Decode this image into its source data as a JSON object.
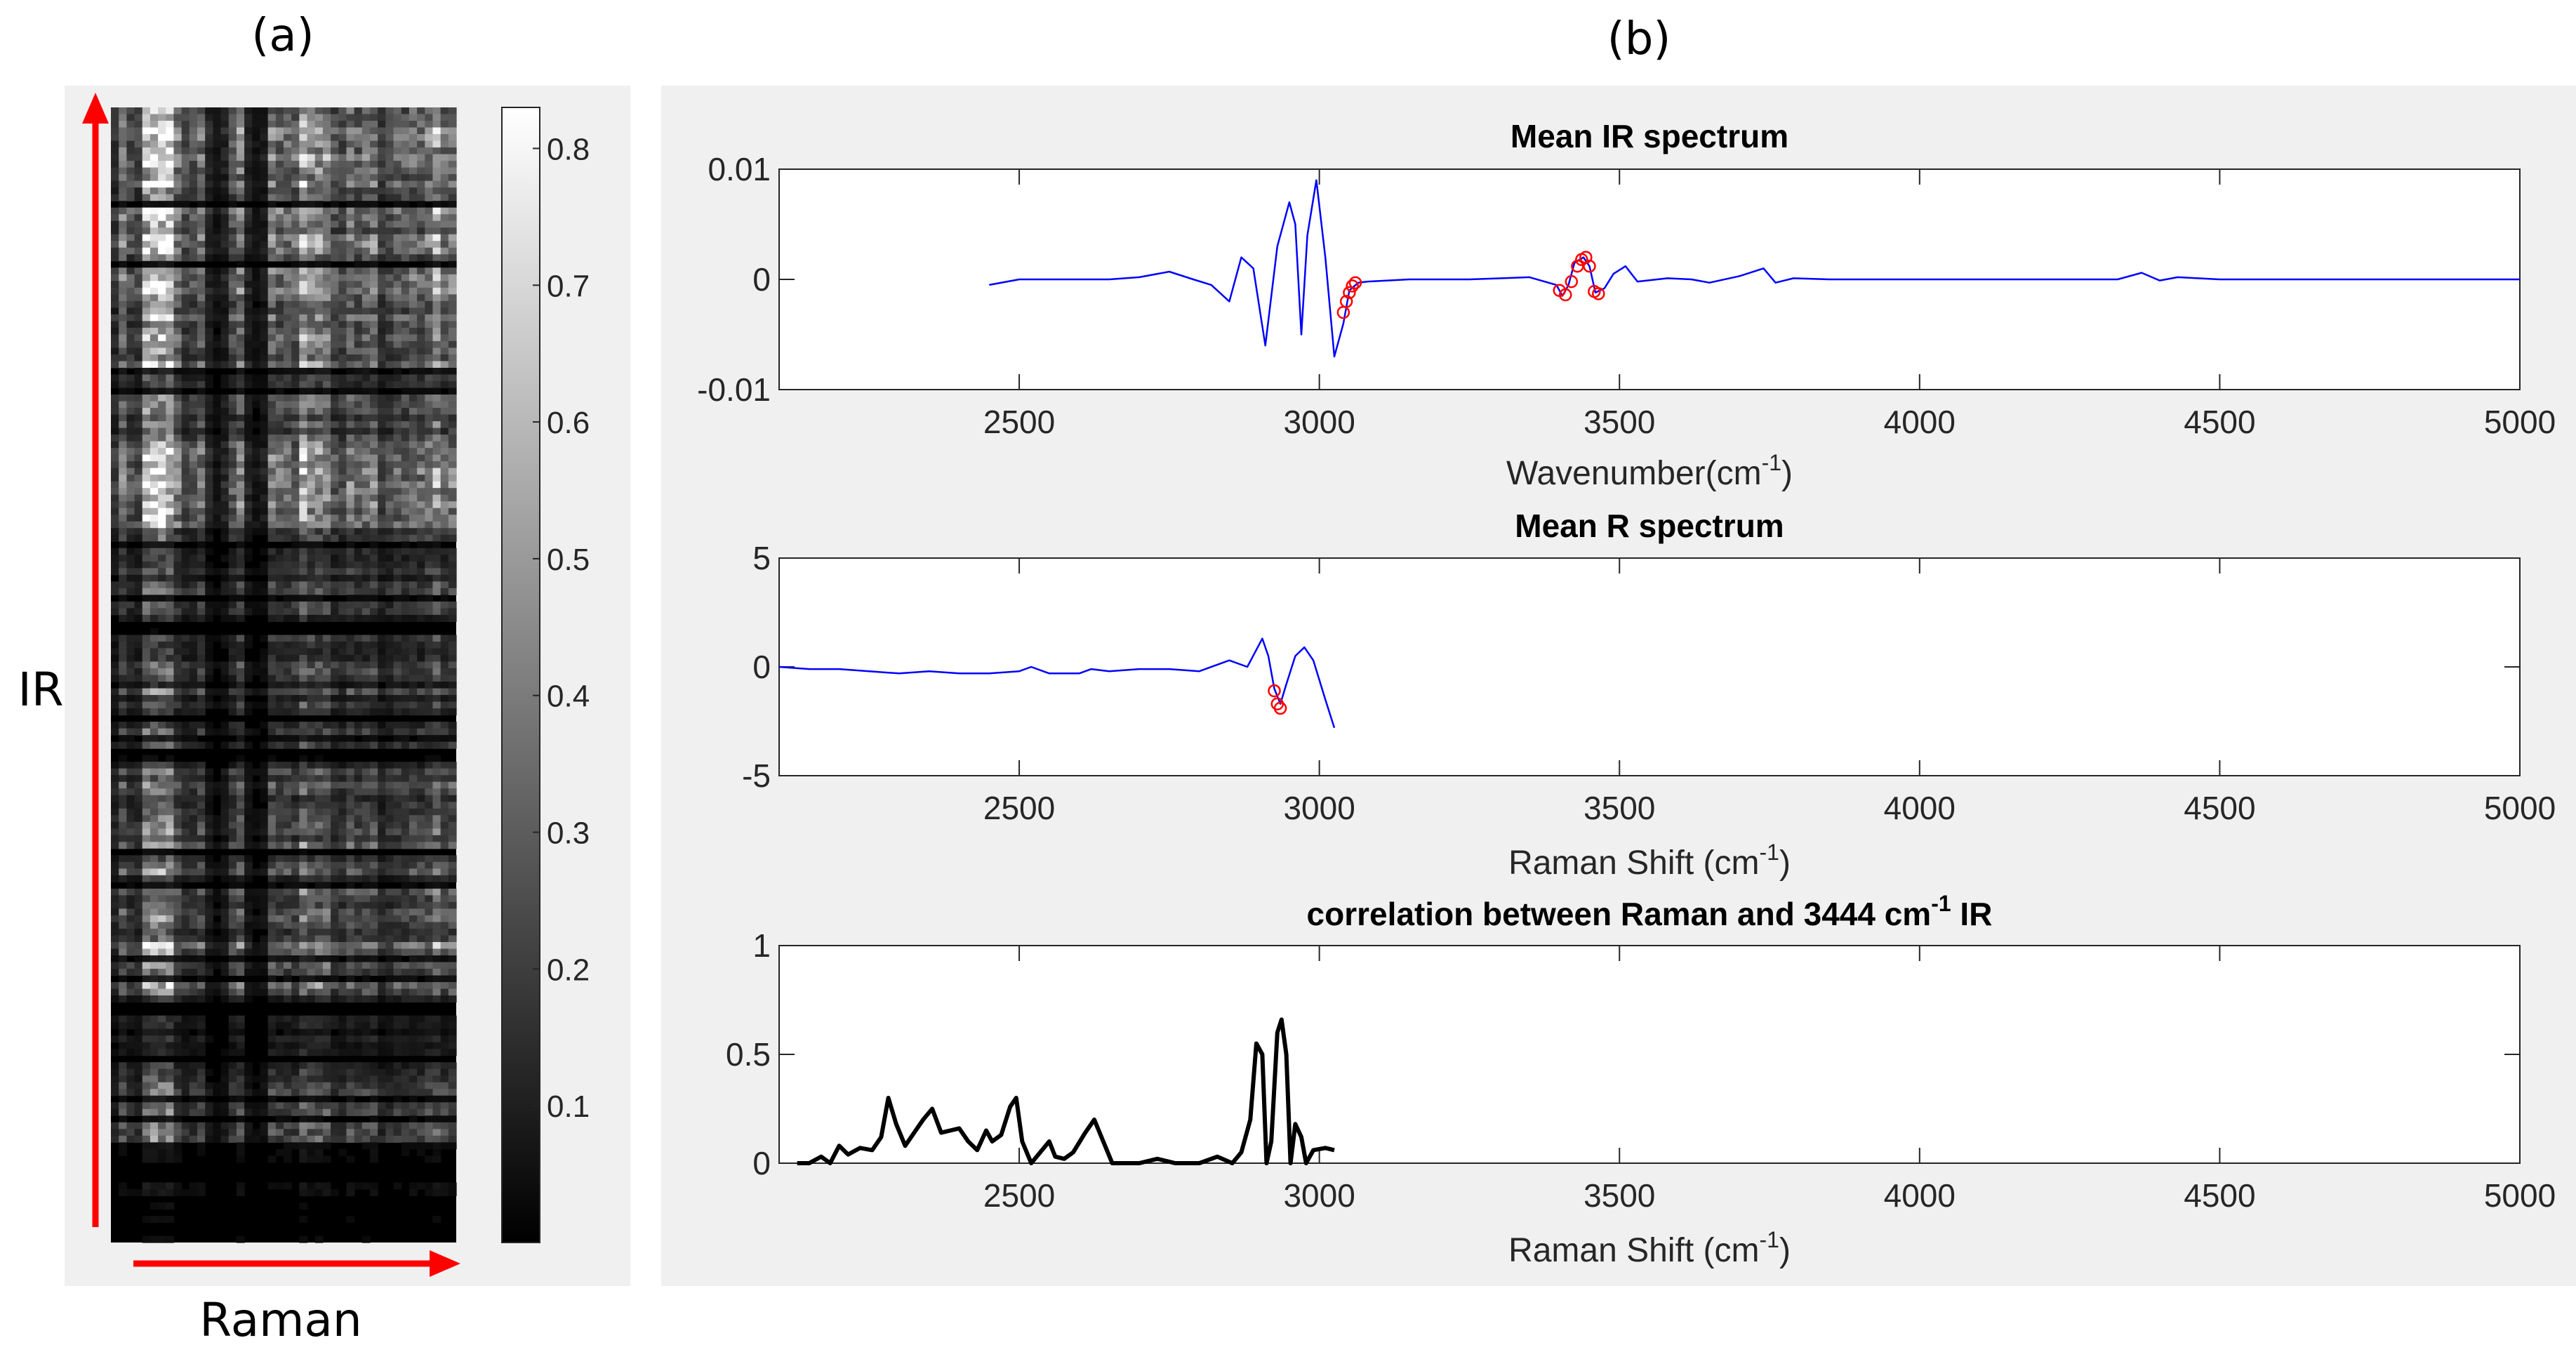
{
  "panel_labels": {
    "a": "(a)",
    "b": "(b)"
  },
  "panel_a": {
    "type": "heatmap",
    "y_axis_label": "IR",
    "x_axis_label": "Raman",
    "colorbar": {
      "ticks": [
        0.1,
        0.2,
        0.3,
        0.4,
        0.5,
        0.6,
        0.7,
        0.8
      ],
      "tick_labels": [
        "0.1",
        "0.2",
        "0.3",
        "0.4",
        "0.5",
        "0.6",
        "0.7",
        "0.8"
      ],
      "range": [
        0,
        0.83
      ]
    },
    "arrow_color": "#ff0000",
    "colormap": "gray"
  },
  "chart_data": [
    {
      "type": "line",
      "title": "Mean IR spectrum",
      "xlabel_main": "Wavenumber(cm",
      "xlabel_sup": "-1",
      "xlabel_end": ")",
      "xlim": [
        2100,
        5000
      ],
      "ylim": [
        -0.01,
        0.01
      ],
      "x_ticks": [
        2500,
        3000,
        3500,
        4000,
        4500,
        5000
      ],
      "x_tick_labels": [
        "2500",
        "3000",
        "3500",
        "4000",
        "4500",
        "5000"
      ],
      "y_ticks": [
        -0.01,
        0,
        0.01
      ],
      "y_tick_labels": [
        "-0.01",
        "0",
        "0.01"
      ],
      "line_color": "#0000ff",
      "marker_color": "#ff0000",
      "series": [
        {
          "name": "mean IR",
          "points": [
            [
              2450,
              -0.0005
            ],
            [
              2500,
              0
            ],
            [
              2550,
              0
            ],
            [
              2600,
              0
            ],
            [
              2650,
              0
            ],
            [
              2700,
              0.0002
            ],
            [
              2750,
              0.0007
            ],
            [
              2790,
              0
            ],
            [
              2820,
              -0.0005
            ],
            [
              2850,
              -0.002
            ],
            [
              2870,
              0.002
            ],
            [
              2890,
              0.001
            ],
            [
              2910,
              -0.006
            ],
            [
              2930,
              0.003
            ],
            [
              2950,
              0.007
            ],
            [
              2960,
              0.005
            ],
            [
              2970,
              -0.005
            ],
            [
              2980,
              0.004
            ],
            [
              2995,
              0.009
            ],
            [
              3010,
              0.002
            ],
            [
              3025,
              -0.007
            ],
            [
              3040,
              -0.004
            ],
            [
              3050,
              -0.001
            ],
            [
              3065,
              -0.0003
            ],
            [
              3080,
              -0.0002
            ],
            [
              3150,
              0
            ],
            [
              3250,
              0
            ],
            [
              3350,
              0.0002
            ],
            [
              3395,
              -0.0005
            ],
            [
              3405,
              -0.0015
            ],
            [
              3415,
              -0.0005
            ],
            [
              3425,
              0.0015
            ],
            [
              3440,
              0.002
            ],
            [
              3450,
              0.0012
            ],
            [
              3460,
              -0.0012
            ],
            [
              3475,
              -0.0008
            ],
            [
              3490,
              0.0005
            ],
            [
              3510,
              0.0012
            ],
            [
              3530,
              -0.0002
            ],
            [
              3580,
              0.0001
            ],
            [
              3620,
              0
            ],
            [
              3650,
              -0.0003
            ],
            [
              3700,
              0.0003
            ],
            [
              3740,
              0.001
            ],
            [
              3760,
              -0.0003
            ],
            [
              3790,
              0.0001
            ],
            [
              3850,
              0
            ],
            [
              4000,
              0
            ],
            [
              4200,
              0
            ],
            [
              4330,
              0
            ],
            [
              4370,
              0.0006
            ],
            [
              4400,
              -0.0001
            ],
            [
              4430,
              0.0002
            ],
            [
              4500,
              0
            ],
            [
              4700,
              0
            ],
            [
              5000,
              0
            ]
          ]
        }
      ],
      "markers": [
        [
          3040,
          -0.003
        ],
        [
          3045,
          -0.002
        ],
        [
          3050,
          -0.0012
        ],
        [
          3055,
          -0.0006
        ],
        [
          3060,
          -0.0003
        ],
        [
          3400,
          -0.001
        ],
        [
          3410,
          -0.0014
        ],
        [
          3420,
          -0.0002
        ],
        [
          3430,
          0.0012
        ],
        [
          3437,
          0.0018
        ],
        [
          3444,
          0.002
        ],
        [
          3450,
          0.0012
        ],
        [
          3458,
          -0.0011
        ],
        [
          3465,
          -0.0013
        ]
      ]
    },
    {
      "type": "line",
      "title": "Mean R spectrum",
      "xlabel_main": "Raman Shift (cm",
      "xlabel_sup": "-1",
      "xlabel_end": ")",
      "xlim": [
        2100,
        5000
      ],
      "ylim": [
        -5,
        5
      ],
      "x_ticks": [
        2500,
        3000,
        3500,
        4000,
        4500,
        5000
      ],
      "x_tick_labels": [
        "2500",
        "3000",
        "3500",
        "4000",
        "4500",
        "5000"
      ],
      "y_ticks": [
        -5,
        0,
        5
      ],
      "y_tick_labels": [
        "-5",
        "0",
        "5"
      ],
      "line_color": "#0000ff",
      "marker_color": "#ff0000",
      "series": [
        {
          "name": "mean Raman",
          "points": [
            [
              2100,
              0
            ],
            [
              2150,
              -0.1
            ],
            [
              2200,
              -0.1
            ],
            [
              2250,
              -0.2
            ],
            [
              2300,
              -0.3
            ],
            [
              2350,
              -0.2
            ],
            [
              2400,
              -0.3
            ],
            [
              2450,
              -0.3
            ],
            [
              2500,
              -0.2
            ],
            [
              2520,
              0
            ],
            [
              2550,
              -0.3
            ],
            [
              2600,
              -0.3
            ],
            [
              2620,
              -0.1
            ],
            [
              2650,
              -0.2
            ],
            [
              2700,
              -0.1
            ],
            [
              2750,
              -0.1
            ],
            [
              2800,
              -0.2
            ],
            [
              2850,
              0.3
            ],
            [
              2880,
              0
            ],
            [
              2905,
              1.3
            ],
            [
              2915,
              0.5
            ],
            [
              2925,
              -1.0
            ],
            [
              2935,
              -1.7
            ],
            [
              2945,
              -0.8
            ],
            [
              2960,
              0.5
            ],
            [
              2975,
              0.9
            ],
            [
              2990,
              0.3
            ],
            [
              3010,
              -1.5
            ],
            [
              3025,
              -2.8
            ]
          ]
        }
      ],
      "markers": [
        [
          2925,
          -1.1
        ],
        [
          2930,
          -1.7
        ],
        [
          2935,
          -1.9
        ]
      ]
    },
    {
      "type": "line",
      "title_main": "correlation between Raman and 3444 cm",
      "title_sup": "-1",
      "title_end": " IR",
      "xlabel_main": "Raman Shift (cm",
      "xlabel_sup": "-1",
      "xlabel_end": ")",
      "xlim": [
        2100,
        5000
      ],
      "ylim": [
        0,
        1
      ],
      "x_ticks": [
        2500,
        3000,
        3500,
        4000,
        4500,
        5000
      ],
      "x_tick_labels": [
        "2500",
        "3000",
        "3500",
        "4000",
        "4500",
        "5000"
      ],
      "y_ticks": [
        0,
        0.5,
        1
      ],
      "y_tick_labels": [
        "0",
        "0.5",
        "1"
      ],
      "line_color": "#000000",
      "series": [
        {
          "name": "correlation",
          "points": [
            [
              2130,
              0
            ],
            [
              2150,
              0
            ],
            [
              2170,
              0.03
            ],
            [
              2185,
              0
            ],
            [
              2200,
              0.08
            ],
            [
              2215,
              0.04
            ],
            [
              2235,
              0.07
            ],
            [
              2255,
              0.06
            ],
            [
              2270,
              0.12
            ],
            [
              2282,
              0.3
            ],
            [
              2295,
              0.18
            ],
            [
              2310,
              0.08
            ],
            [
              2325,
              0.14
            ],
            [
              2340,
              0.2
            ],
            [
              2355,
              0.25
            ],
            [
              2370,
              0.14
            ],
            [
              2385,
              0.15
            ],
            [
              2400,
              0.16
            ],
            [
              2415,
              0.1
            ],
            [
              2430,
              0.06
            ],
            [
              2445,
              0.15
            ],
            [
              2455,
              0.1
            ],
            [
              2470,
              0.13
            ],
            [
              2485,
              0.26
            ],
            [
              2495,
              0.3
            ],
            [
              2505,
              0.1
            ],
            [
              2520,
              0
            ],
            [
              2535,
              0.05
            ],
            [
              2550,
              0.1
            ],
            [
              2560,
              0.03
            ],
            [
              2575,
              0.02
            ],
            [
              2590,
              0.05
            ],
            [
              2610,
              0.14
            ],
            [
              2625,
              0.2
            ],
            [
              2640,
              0.1
            ],
            [
              2655,
              0
            ],
            [
              2700,
              0
            ],
            [
              2730,
              0.02
            ],
            [
              2760,
              0
            ],
            [
              2800,
              0
            ],
            [
              2830,
              0.03
            ],
            [
              2855,
              0
            ],
            [
              2870,
              0.05
            ],
            [
              2885,
              0.2
            ],
            [
              2895,
              0.55
            ],
            [
              2905,
              0.5
            ],
            [
              2912,
              0
            ],
            [
              2920,
              0.1
            ],
            [
              2930,
              0.6
            ],
            [
              2937,
              0.66
            ],
            [
              2945,
              0.5
            ],
            [
              2952,
              0
            ],
            [
              2960,
              0.18
            ],
            [
              2970,
              0.12
            ],
            [
              2978,
              0
            ],
            [
              2990,
              0.06
            ],
            [
              3010,
              0.07
            ],
            [
              3025,
              0.06
            ]
          ]
        }
      ]
    }
  ]
}
